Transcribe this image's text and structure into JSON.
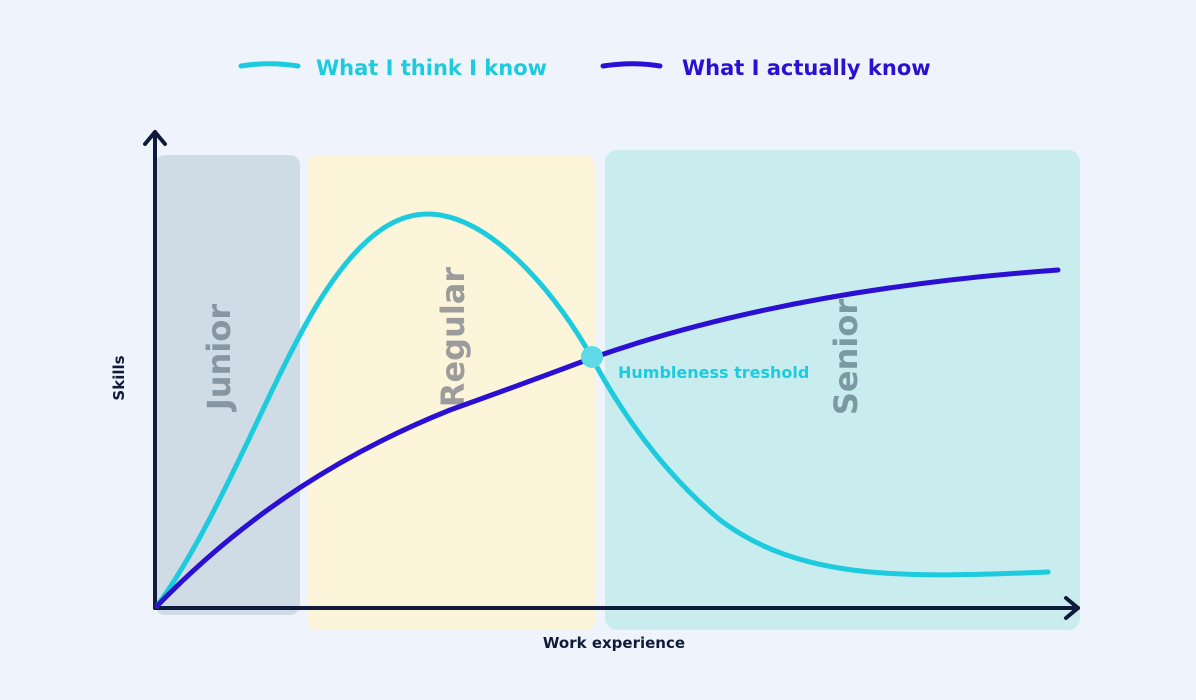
{
  "legend": {
    "items": [
      {
        "label": "What I think I know"
      },
      {
        "label": "What I actually know"
      }
    ]
  },
  "axes": {
    "x_label": "Work experience",
    "y_label": "Skills"
  },
  "zones": [
    {
      "label": "Junior"
    },
    {
      "label": "Regular"
    },
    {
      "label": "Senior"
    }
  ],
  "annotation": "Humbleness treshold"
}
